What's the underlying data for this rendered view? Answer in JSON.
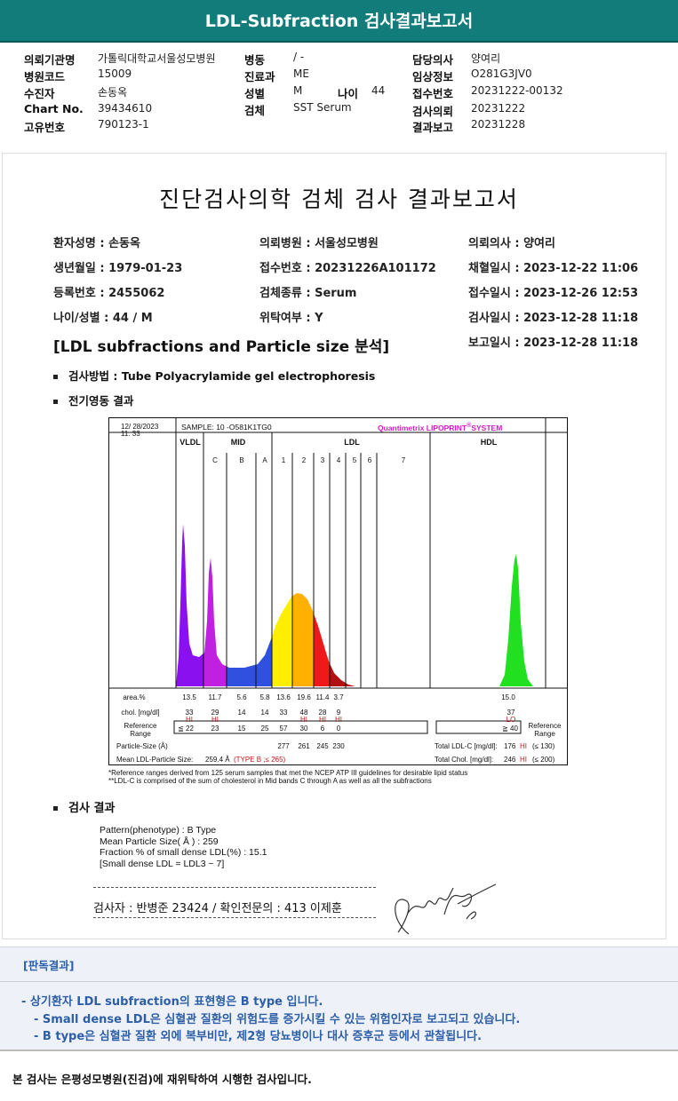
{
  "title": "LDL-Subfraction 검사결과보고서",
  "header": {
    "left": [
      {
        "label": "의뢰기관명",
        "value": "가톨릭대학교서울성모병원"
      },
      {
        "label": "병원코드",
        "value": "15009"
      },
      {
        "label": "수진자",
        "value": "손동옥"
      },
      {
        "label": "Chart No.",
        "value": "39434610"
      },
      {
        "label": "고유번호",
        "value": "790123-1"
      }
    ],
    "mid": [
      {
        "label": "병동",
        "value": "/ -"
      },
      {
        "label": "진료과",
        "value": "ME"
      },
      {
        "label": "성별",
        "value": "M"
      },
      {
        "label": "검체",
        "value": "SST Serum"
      }
    ],
    "age_label": "나이",
    "age_value": "44",
    "right": [
      {
        "label": "담당의사",
        "value": "양여리"
      },
      {
        "label": "임상정보",
        "value": "O281G3JV0"
      },
      {
        "label": "접수번호",
        "value": "20231222-00132"
      },
      {
        "label": "검사의뢰",
        "value": "20231222"
      },
      {
        "label": "결과보고",
        "value": "20231228"
      }
    ]
  },
  "report": {
    "title": "진단검사의학 검체 검사 결과보고서",
    "col1": [
      "환자성명 : 손동옥",
      "생년월일 : 1979-01-23",
      "등록번호 : 2455062",
      "나이/성별 : 44 / M"
    ],
    "col2": [
      "의뢰병원 : 서울성모병원",
      "접수번호 : 20231226A101172",
      "검체종류 : Serum",
      "위탁여부 : Y"
    ],
    "col3": [
      "의뢰의사 : 양여리",
      "채혈일시 : 2023-12-22 11:06",
      "접수일시 : 2023-12-26 12:53",
      "검사일시 : 2023-12-28 11:18",
      "보고일시 : 2023-12-28 11:18"
    ],
    "section": "[LDL subfractions and Particle size 분석]",
    "method": "검사방법 : Tube Polyacrylamide gel electrophoresis",
    "electro": "전기영동 결과",
    "result_heading": "검사 결과",
    "results": [
      "Pattern(phenotype) : B Type",
      "Mean Particle Size( Å ) : 259",
      "Fraction % of small dense LDL(%) : 15.1",
      "[Small dense LDL = LDL3 ~ 7]"
    ],
    "signature_line": "검사자 : 반병준  23424  /  확인전문의 : 413  이제훈"
  },
  "chart": {
    "date": "12/ 28/2023",
    "time": "11: 33",
    "sample": "SAMPLE:   10 -O581K1TG0",
    "brand": "Quantimetrix LIPOPRINT",
    "brand_mark": "®",
    "brand_suffix": "SYSTEM",
    "groups": [
      "VLDL",
      "MID",
      "LDL",
      "HDL"
    ],
    "bands": [
      "C",
      "B",
      "A",
      "1",
      "2",
      "3",
      "4",
      "5",
      "6",
      "7"
    ],
    "row_labels": {
      "area": "area.%",
      "chol": "chol. [mg/dl]",
      "ref": "Reference Range",
      "particle": "Particle-Size (Å)",
      "mean": "Mean LDL-Particle Size:"
    },
    "area": [
      "13.5",
      "11.7",
      "5.6",
      "5.8",
      "13.6",
      "19.6",
      "11.4",
      "3.7"
    ],
    "chol": [
      "33",
      "29",
      "14",
      "14",
      "33",
      "48",
      "28",
      "9"
    ],
    "chol_flags": [
      "HI",
      "HI",
      "",
      "",
      "",
      "HI",
      "HI",
      "HI"
    ],
    "ref": [
      "≦ 22",
      "23",
      "15",
      "25",
      "57",
      "30",
      "6",
      "0"
    ],
    "particle": [
      "277",
      "261",
      "245",
      "230"
    ],
    "hdl_area": "15.0",
    "hdl_chol": "37",
    "hdl_flag": "LO",
    "hdl_ref": "≧ 40",
    "mean_value": "259.4 Å",
    "mean_type": "(TYPE B ;≤ 265)",
    "total_ldl_label": "Total LDL-C [mg/dl]:",
    "total_ldl": "176",
    "total_ldl_flag": "HI",
    "total_ldl_ref": "(≤ 130)",
    "total_chol_label": "Total Chol. [mg/dl]:",
    "total_chol": "246",
    "total_chol_flag": "HI",
    "total_chol_ref": "(≤ 200)",
    "footnote1": "*Reference ranges derived from 125 serum samples that met the NCEP ATP III guidelines for desirable lipid status",
    "footnote2": "**LDL-C is comprised of the sum of cholesterol in Mid bands C through A as well as all the subfractions",
    "colors": {
      "vldl": "#8a10f0",
      "mid_c": "#c020e0",
      "mid_ba": "#3050e0",
      "ldl1": "#ffee00",
      "ldl2": "#ffb000",
      "ldl3": "#f01818",
      "ldl4": "#b01010",
      "hdl": "#20e020",
      "flag": "#c01818",
      "brand": "#d020c0"
    }
  },
  "interpretation": {
    "heading": "[판독결과]",
    "lines": [
      "- 상기환자 LDL subfraction의 표현형은 B type 입니다.",
      "-  Small dense LDL은 심혈관 질환의 위험도를 증가시킬 수 있는 위험인자로 보고되고 있습니다.",
      "-  B type은 심혈관 질환 외에 복부비만, 제2형 당뇨병이나 대사 증후군 등에서 관찰됩니다."
    ]
  },
  "footer": "본 검사는 은평성모병원(진검)에 재위탁하여 시행한 검사입니다."
}
